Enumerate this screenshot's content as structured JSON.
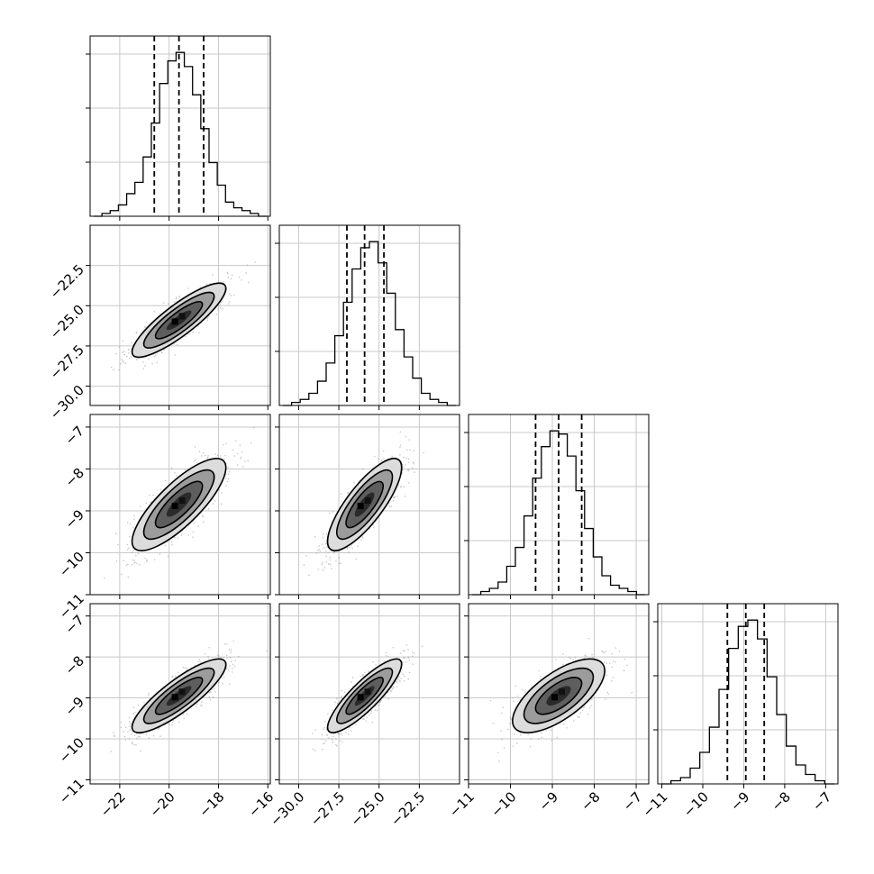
{
  "chart_data": {
    "type": "corner",
    "title": "",
    "parameters": [
      {
        "range": [
          -23.2,
          -15.9
        ],
        "ticks": [
          -22,
          -20,
          -18,
          -16
        ],
        "tick_labels": [
          "−22",
          "−20",
          "−18",
          "−16"
        ],
        "quantiles": [
          -20.6,
          -19.6,
          -18.6
        ],
        "mean": -19.6,
        "sd": 0.95,
        "hist": [
          0,
          1,
          2,
          4,
          8,
          12,
          21,
          33,
          47,
          55,
          58,
          53,
          43,
          31,
          19,
          11,
          5,
          3,
          2,
          1,
          0
        ]
      },
      {
        "range": [
          -31.2,
          -20.0
        ],
        "ticks": [
          -30.0,
          -27.5,
          -25.0,
          -22.5
        ],
        "tick_labels": [
          "−30.0",
          "−27.5",
          "−25.0",
          "−22.5"
        ],
        "quantiles": [
          -27.0,
          -25.9,
          -24.7
        ],
        "mean": -25.9,
        "sd": 1.15,
        "hist": [
          0,
          1,
          2,
          4,
          8,
          14,
          23,
          34,
          45,
          52,
          54,
          47,
          37,
          25,
          16,
          9,
          4,
          2,
          1,
          0
        ]
      },
      {
        "range": [
          -11.0,
          -6.7
        ],
        "ticks": [
          -11,
          -10,
          -9,
          -8,
          -7
        ],
        "tick_labels": [
          "−11",
          "−10",
          "−9",
          "−8",
          "−7"
        ],
        "quantiles": [
          -9.4,
          -8.85,
          -8.3
        ],
        "mean": -8.85,
        "sd": 0.55,
        "hist": [
          0,
          1,
          2,
          4,
          9,
          15,
          25,
          37,
          47,
          52,
          51,
          44,
          33,
          21,
          12,
          6,
          3,
          2,
          1,
          0
        ]
      },
      {
        "range": [
          -11.1,
          -6.7
        ],
        "ticks": [
          -11,
          -10,
          -9,
          -8,
          -7
        ],
        "tick_labels": [
          "−11",
          "−10",
          "−9",
          "−8",
          "−7"
        ],
        "quantiles": [
          -9.4,
          -8.95,
          -8.5
        ],
        "mean": -8.95,
        "sd": 0.45,
        "hist": [
          0,
          1,
          2,
          5,
          10,
          18,
          30,
          43,
          50,
          52,
          46,
          34,
          22,
          12,
          6,
          3,
          1,
          0
        ]
      }
    ],
    "pairs": [
      {
        "row": 1,
        "col": 0,
        "corr": 0.86
      },
      {
        "row": 2,
        "col": 0,
        "corr": 0.8
      },
      {
        "row": 2,
        "col": 1,
        "corr": 0.8
      },
      {
        "row": 3,
        "col": 0,
        "corr": 0.85
      },
      {
        "row": 3,
        "col": 1,
        "corr": 0.86
      },
      {
        "row": 3,
        "col": 2,
        "corr": 0.68
      }
    ],
    "grid": true,
    "contours": true,
    "quantile_lines": "dashed"
  }
}
